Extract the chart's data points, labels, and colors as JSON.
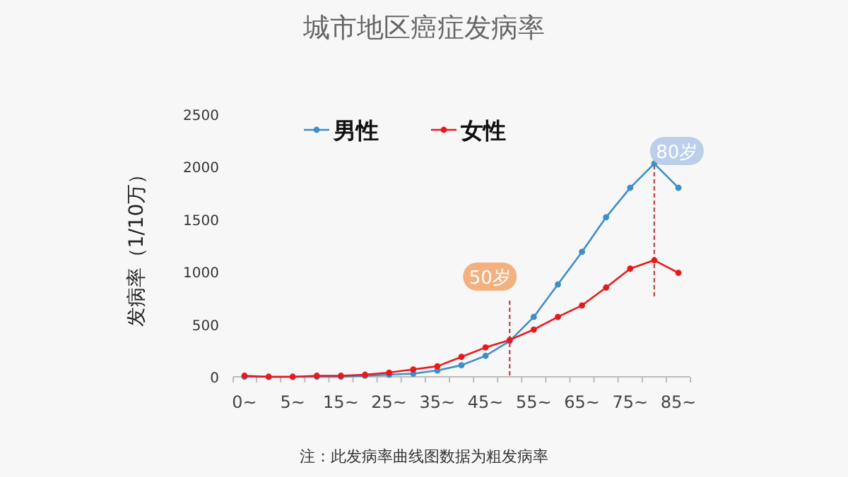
{
  "chart_data": {
    "type": "line",
    "title": "城市地区癌症发病率",
    "ylabel": "发病率（1/10万）",
    "categories": [
      "0~",
      null,
      "5~",
      null,
      "15~",
      null,
      "25~",
      null,
      "35~",
      null,
      "45~",
      null,
      "55~",
      null,
      "65~",
      null,
      "75~",
      null,
      "85~"
    ],
    "series": [
      {
        "name": "男性",
        "color": "#3e8ec9",
        "values": [
          0,
          0,
          0,
          0,
          0,
          10,
          20,
          30,
          60,
          110,
          200,
          340,
          570,
          880,
          1190,
          1520,
          1800,
          2030,
          1800
        ]
      },
      {
        "name": "女性",
        "color": "#e8191c",
        "values": [
          10,
          0,
          0,
          10,
          10,
          20,
          40,
          70,
          100,
          190,
          280,
          350,
          450,
          570,
          680,
          850,
          1030,
          1110,
          990
        ]
      }
    ],
    "ylim": [
      0,
      2500
    ],
    "yticks": [
      0,
      500,
      1000,
      1500,
      2000,
      2500
    ],
    "annotations": [
      "50岁",
      "80岁",
      "注：此发病率曲线图数据为粗发病率"
    ],
    "legend": "top left",
    "marker": "circle",
    "grid": false
  }
}
